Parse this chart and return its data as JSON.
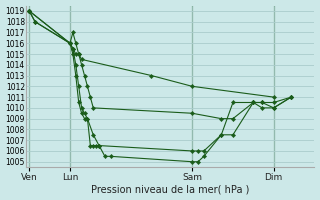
{
  "background_color": "#cce8e8",
  "grid_color": "#aacccc",
  "line_color": "#1a5c1a",
  "marker_color": "#1a5c1a",
  "title": "Pression niveau de la mer( hPa )",
  "xlabel_ticks": [
    "Ven",
    "Lun",
    "Sam",
    "Dim"
  ],
  "xlabel_tick_positions": [
    0,
    14,
    56,
    84
  ],
  "xlim": [
    -1,
    98
  ],
  "ylim": [
    1004.5,
    1019.5
  ],
  "yticks": [
    1005,
    1006,
    1007,
    1008,
    1009,
    1010,
    1011,
    1012,
    1013,
    1014,
    1015,
    1016,
    1017,
    1018,
    1019
  ],
  "series": [
    {
      "x": [
        0,
        2,
        14,
        15,
        16,
        17,
        18,
        42,
        56,
        84
      ],
      "y": [
        1019.0,
        1018.0,
        1016.0,
        1015.5,
        1015.0,
        1015.0,
        1014.5,
        1013.0,
        1012.0,
        1011.0
      ]
    },
    {
      "x": [
        0,
        2,
        14,
        15,
        16,
        17,
        18,
        19,
        20,
        21,
        22,
        56,
        66,
        70,
        77,
        80,
        84,
        90
      ],
      "y": [
        1019.0,
        1018.0,
        1016.0,
        1017.0,
        1016.0,
        1015.0,
        1014.0,
        1013.0,
        1012.0,
        1011.0,
        1010.0,
        1009.5,
        1009.0,
        1009.0,
        1010.5,
        1010.5,
        1010.5,
        1011.0
      ]
    },
    {
      "x": [
        0,
        14,
        15,
        16,
        17,
        18,
        19,
        20,
        21,
        22,
        23,
        24,
        56,
        58,
        60,
        66,
        70,
        77,
        80,
        84,
        90
      ],
      "y": [
        1019.0,
        1016.0,
        1015.0,
        1013.0,
        1010.5,
        1009.5,
        1009.0,
        1009.0,
        1006.5,
        1006.5,
        1006.5,
        1006.5,
        1006.0,
        1006.0,
        1006.0,
        1007.5,
        1010.5,
        1010.5,
        1010.5,
        1010.0,
        1011.0
      ]
    },
    {
      "x": [
        0,
        14,
        15,
        16,
        17,
        18,
        19,
        20,
        22,
        24,
        26,
        28,
        56,
        58,
        60,
        66,
        70,
        77,
        80,
        84,
        90
      ],
      "y": [
        1019.0,
        1016.0,
        1015.5,
        1014.0,
        1012.0,
        1010.0,
        1009.5,
        1009.0,
        1007.5,
        1006.5,
        1005.5,
        1005.5,
        1005.0,
        1005.0,
        1005.5,
        1007.5,
        1007.5,
        1010.5,
        1010.0,
        1010.0,
        1011.0
      ]
    }
  ]
}
